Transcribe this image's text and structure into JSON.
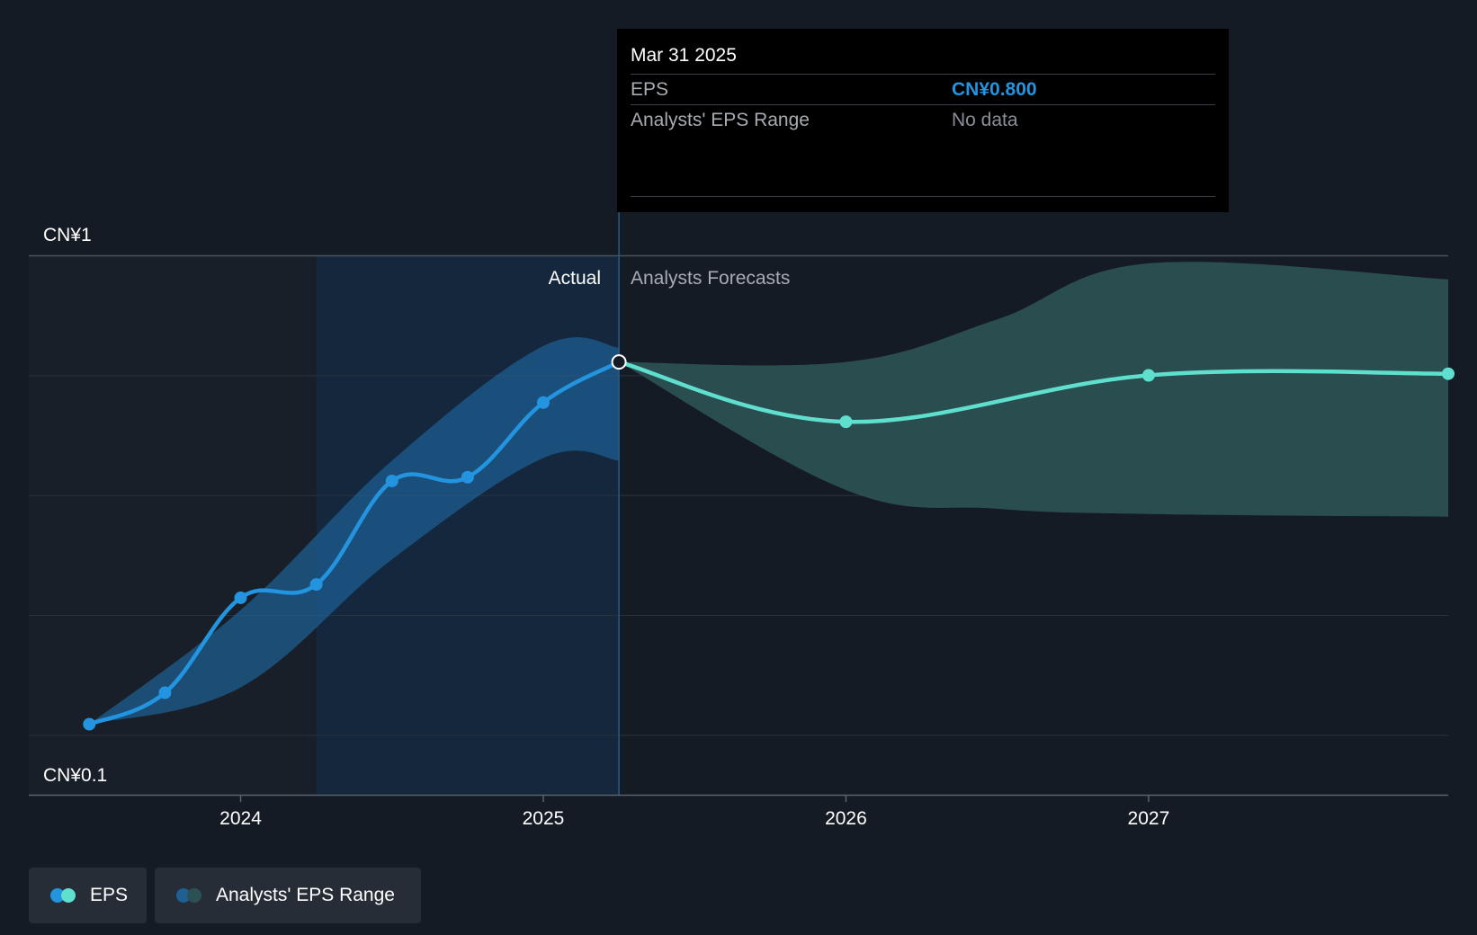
{
  "tooltip": {
    "date": "Mar 31 2025",
    "rows": [
      {
        "label": "EPS",
        "value": "CN¥0.800"
      },
      {
        "label": "Analysts' EPS Range",
        "value": "No data"
      }
    ]
  },
  "labels": {
    "actual": "Actual",
    "forecast": "Analysts Forecasts"
  },
  "legend": [
    {
      "label": "EPS"
    },
    {
      "label": "Analysts' EPS Range"
    }
  ],
  "colors": {
    "background": "#151b24",
    "actual_line": "#2394df",
    "actual_band": "#1f5f93",
    "forecast_line": "#5fe0cf",
    "forecast_band": "#2c5154",
    "tooltip_value": "#2394df",
    "tooltip_muted": "#8a8f97"
  },
  "chart_data": {
    "type": "line",
    "y_tick_labels": [
      "CN¥1",
      "CN¥0.1"
    ],
    "ylim": [
      0.1,
      1.0
    ],
    "x_tick_labels": [
      "2024",
      "2025",
      "2026",
      "2027"
    ],
    "xlim": [
      2023.3,
      2027.99
    ],
    "actual_end": 2025.25,
    "highlight_start": 2024.25,
    "series": [
      {
        "name": "EPS",
        "segment": "actual",
        "x": [
          2023.5,
          2023.75,
          2024.0,
          2024.25,
          2024.5,
          2024.75,
          2025.0,
          2025.25
        ],
        "y": [
          0.121,
          0.18,
          0.358,
          0.383,
          0.577,
          0.584,
          0.724,
          0.8
        ]
      },
      {
        "name": "EPS",
        "segment": "forecast",
        "x": [
          2025.25,
          2026.0,
          2027.0,
          2027.99
        ],
        "y": [
          0.8,
          0.688,
          0.775,
          0.778
        ]
      }
    ],
    "range": [
      {
        "name": "Analysts' EPS Range",
        "segment": "actual",
        "x": [
          2023.5,
          2024.0,
          2024.5,
          2025.0,
          2025.25
        ],
        "upper": [
          0.121,
          0.335,
          0.615,
          0.83,
          0.827
        ],
        "lower": [
          0.121,
          0.19,
          0.43,
          0.62,
          0.615
        ]
      },
      {
        "name": "Analysts' EPS Range",
        "segment": "forecast",
        "x": [
          2025.25,
          2026.0,
          2026.5,
          2027.0,
          2027.99
        ],
        "upper": [
          0.8,
          0.8,
          0.88,
          0.985,
          0.955
        ],
        "lower": [
          0.8,
          0.56,
          0.525,
          0.515,
          0.51
        ]
      }
    ]
  }
}
